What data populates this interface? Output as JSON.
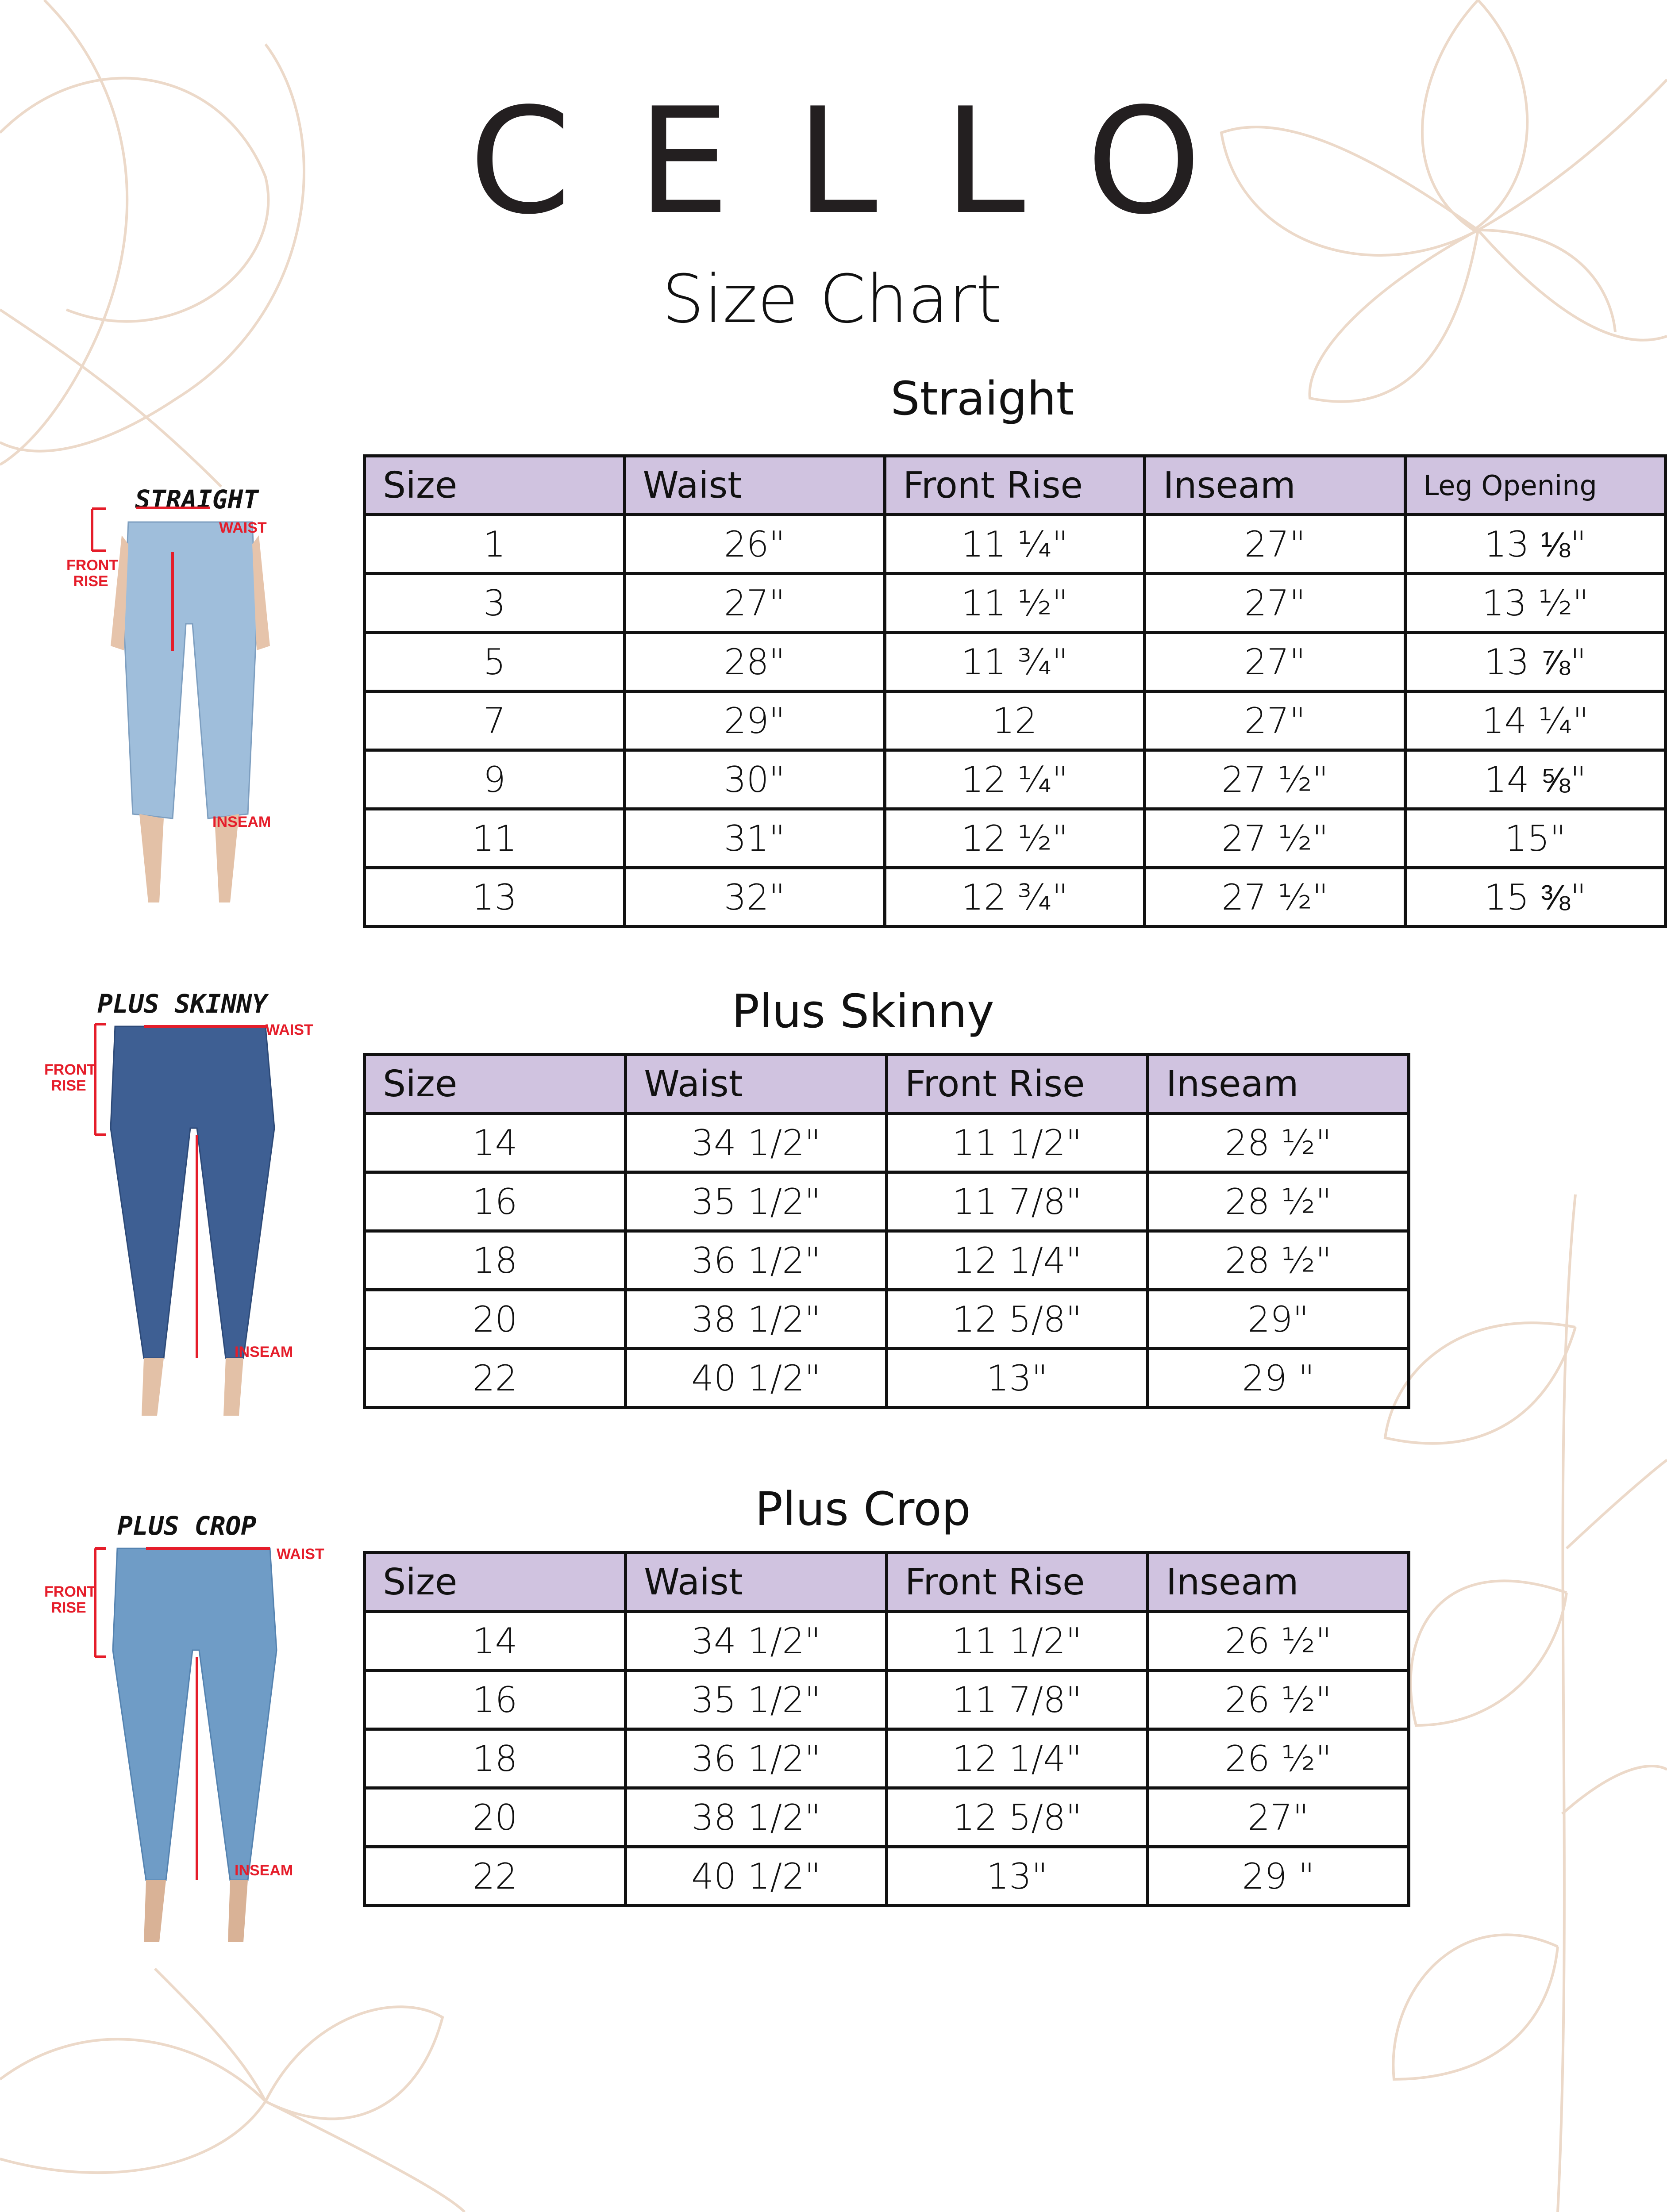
{
  "header": {
    "logo": "CELLO",
    "title": "Size Chart"
  },
  "colors": {
    "header_fill": "#d0c3e0",
    "border": "#111111",
    "annotation_red": "#e51d2a",
    "floral_line": "#ecd9c9"
  },
  "figures": [
    {
      "label": "STRAIGHT",
      "waist": "WAIST",
      "front_rise": "FRONT RISE",
      "inseam": "INSEAM",
      "denim": "#9fbedb"
    },
    {
      "label": "PLUS SKINNY",
      "waist": "WAIST",
      "front_rise": "FRONT RISE",
      "inseam": "INSEAM",
      "denim": "#3e5f93"
    },
    {
      "label": "PLUS CROP",
      "waist": "WAIST",
      "front_rise": "FRONT RISE",
      "inseam": "INSEAM",
      "denim": "#6f9cc6"
    }
  ],
  "tables": [
    {
      "title": "Straight",
      "columns": [
        "Size",
        "Waist",
        "Front Rise",
        "Inseam",
        "Leg Opening"
      ],
      "rows": [
        [
          "1",
          "26\"",
          "11 ¼\"",
          "27\"",
          "13 ⅛\""
        ],
        [
          "3",
          "27\"",
          "11 ½\"",
          "27\"",
          "13 ½\""
        ],
        [
          "5",
          "28\"",
          "11 ¾\"",
          "27\"",
          "13 ⅞\""
        ],
        [
          "7",
          "29\"",
          "12",
          "27\"",
          "14 ¼\""
        ],
        [
          "9",
          "30\"",
          "12 ¼\"",
          "27 ½\"",
          "14 ⅝\""
        ],
        [
          "11",
          "31\"",
          "12 ½\"",
          "27 ½\"",
          "15\""
        ],
        [
          "13",
          "32\"",
          "12 ¾\"",
          "27 ½\"",
          "15 ⅜\""
        ]
      ]
    },
    {
      "title": "Plus Skinny",
      "columns": [
        "Size",
        "Waist",
        "Front Rise",
        "Inseam"
      ],
      "rows": [
        [
          "14",
          "34 1/2\"",
          "11 1/2\"",
          "28 ½\""
        ],
        [
          "16",
          "35 1/2\"",
          "11 7/8\"",
          "28 ½\""
        ],
        [
          "18",
          "36 1/2\"",
          "12 1/4\"",
          "28 ½\""
        ],
        [
          "20",
          "38 1/2\"",
          "12 5/8\"",
          "29\""
        ],
        [
          "22",
          "40 1/2\"",
          "13\"",
          "29 \""
        ]
      ]
    },
    {
      "title": "Plus Crop",
      "columns": [
        "Size",
        "Waist",
        "Front Rise",
        "Inseam"
      ],
      "rows": [
        [
          "14",
          "34 1/2\"",
          "11 1/2\"",
          "26 ½\""
        ],
        [
          "16",
          "35 1/2\"",
          "11 7/8\"",
          "26 ½\""
        ],
        [
          "18",
          "36 1/2\"",
          "12 1/4\"",
          "26 ½\""
        ],
        [
          "20",
          "38 1/2\"",
          "12 5/8\"",
          "27\""
        ],
        [
          "22",
          "40 1/2\"",
          "13\"",
          "29 \""
        ]
      ]
    }
  ]
}
